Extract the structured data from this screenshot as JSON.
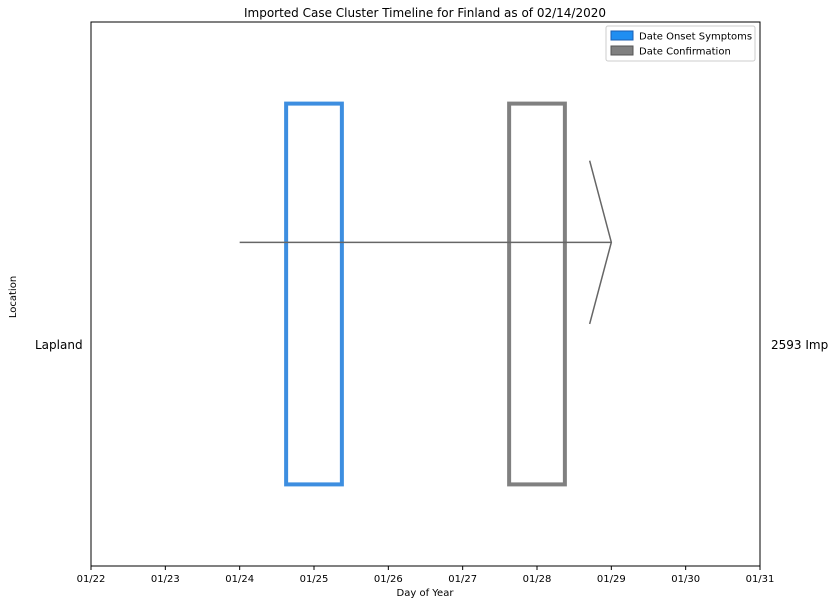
{
  "chart_data": {
    "type": "timeline",
    "title": "Imported Case Cluster Timeline for Finland as of 02/14/2020",
    "xlabel": "Day of Year",
    "ylabel": "Location",
    "x_ticks": [
      "01/22",
      "01/23",
      "01/24",
      "01/25",
      "01/26",
      "01/27",
      "01/28",
      "01/29",
      "01/30",
      "01/31"
    ],
    "xlim": [
      "01/22",
      "01/31"
    ],
    "ylim": [
      -1,
      1
    ],
    "row_label": "Lapland",
    "right_label": "2593 Imp",
    "legend": {
      "placement": "top-right",
      "entries": [
        {
          "label": "Date Onset Symptoms",
          "color": "#1f8ef1",
          "edge": "#1a5fb4"
        },
        {
          "label": "Date Confirmation",
          "color": "#808080",
          "edge": "#555555"
        }
      ]
    },
    "bars": [
      {
        "series": "Date Onset Symptoms",
        "x_start": "01/24 15:00",
        "x_end": "01/25 09:00",
        "y_bottom": -0.7,
        "y_top": 0.7,
        "color": "#3d8ee0"
      },
      {
        "series": "Date Confirmation",
        "x_start": "01/27 15:00",
        "x_end": "01/28 09:00",
        "y_bottom": -0.7,
        "y_top": 0.7,
        "color": "#808080"
      }
    ],
    "arrow": {
      "x_start": "01/24",
      "x_end": "01/29",
      "y": 0.19,
      "head_back": "01/28 17:00",
      "head_spread": 0.3,
      "color": "#666666"
    }
  }
}
